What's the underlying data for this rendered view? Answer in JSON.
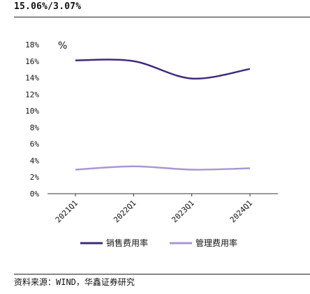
{
  "header": {
    "text": "15.06%/3.07%"
  },
  "footer": {
    "source": "资料来源：WIND，华鑫证券研究"
  },
  "chart_data": {
    "type": "line",
    "ylabel": "%",
    "ylim": [
      0,
      18
    ],
    "yticks": [
      "0%",
      "2%",
      "4%",
      "6%",
      "8%",
      "10%",
      "12%",
      "14%",
      "16%",
      "18%"
    ],
    "categories": [
      "2021Q1",
      "2022Q1",
      "2023Q1",
      "2024Q1"
    ],
    "grid": false,
    "legend_position": "bottom",
    "series": [
      {
        "name": "销售费用率",
        "values": [
          16.1,
          16.0,
          13.9,
          15.06
        ],
        "color": "#3f2a7a"
      },
      {
        "name": "管理费用率",
        "values": [
          2.9,
          3.3,
          2.9,
          3.07
        ],
        "color": "#a996d6"
      }
    ]
  }
}
